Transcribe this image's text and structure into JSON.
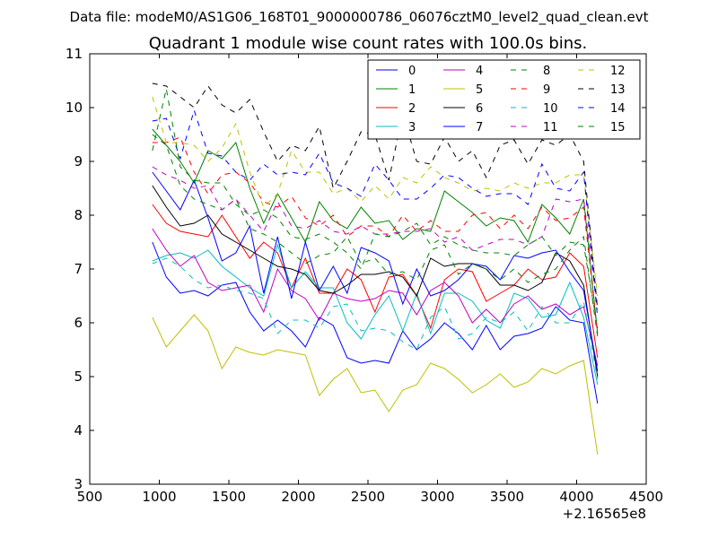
{
  "header": {
    "suptitle": "Data file: modeM0/AS1G06_168T01_9000000786_06076cztM0_level2_quad_clean.evt"
  },
  "chart_data": {
    "type": "line",
    "title": "Quadrant 1 module wise count rates with 100.0s bins.",
    "xlabel": "",
    "ylabel": "",
    "xlim": [
      500,
      4500
    ],
    "ylim": [
      3,
      11
    ],
    "x_offset_label": "+2.16565e8",
    "xticks": [
      "500",
      "1000",
      "1500",
      "2000",
      "2500",
      "3000",
      "3500",
      "4000",
      "4500"
    ],
    "yticks": [
      "3",
      "4",
      "5",
      "6",
      "7",
      "8",
      "9",
      "10",
      "11"
    ],
    "legend_position": "top-right",
    "grid": false,
    "x": [
      950,
      1050,
      1150,
      1250,
      1350,
      1450,
      1550,
      1650,
      1750,
      1850,
      1950,
      2050,
      2150,
      2250,
      2350,
      2450,
      2550,
      2650,
      2750,
      2850,
      2950,
      3050,
      3150,
      3250,
      3350,
      3450,
      3550,
      3650,
      3750,
      3850,
      3950,
      4050,
      4150
    ],
    "series": [
      {
        "name": "0",
        "color": "#0000ff",
        "dash": "solid",
        "values": [
          7.5,
          6.85,
          6.55,
          6.6,
          6.5,
          6.7,
          6.75,
          6.2,
          5.85,
          6.05,
          5.85,
          5.55,
          6.1,
          5.95,
          5.35,
          5.25,
          5.3,
          5.25,
          5.85,
          5.5,
          5.7,
          6.0,
          5.8,
          5.5,
          5.95,
          5.5,
          5.75,
          5.8,
          5.9,
          6.3,
          6.05,
          6.0,
          4.5
        ]
      },
      {
        "name": "1",
        "color": "#008000",
        "dash": "solid",
        "values": [
          9.6,
          9.3,
          9.0,
          8.6,
          9.2,
          9.05,
          9.35,
          8.5,
          7.85,
          8.4,
          7.95,
          7.5,
          8.25,
          7.9,
          7.75,
          8.15,
          7.85,
          7.9,
          7.55,
          7.75,
          7.7,
          8.45,
          8.25,
          8.05,
          7.8,
          7.95,
          7.9,
          7.5,
          8.2,
          7.95,
          7.65,
          8.3,
          5.8
        ]
      },
      {
        "name": "2",
        "color": "#ff0000",
        "dash": "solid",
        "values": [
          8.2,
          7.85,
          7.7,
          7.65,
          7.6,
          8.0,
          7.6,
          7.2,
          7.5,
          7.3,
          6.65,
          7.2,
          6.55,
          6.55,
          7.0,
          6.8,
          6.2,
          6.85,
          6.9,
          6.5,
          5.9,
          6.8,
          7.0,
          6.95,
          6.4,
          6.55,
          6.7,
          7.0,
          6.8,
          6.85,
          7.3,
          7.05,
          5.35
        ]
      },
      {
        "name": "3",
        "color": "#00bfbf",
        "dash": "solid",
        "values": [
          7.15,
          7.25,
          7.3,
          7.2,
          7.35,
          7.05,
          6.85,
          6.65,
          6.5,
          7.45,
          6.65,
          6.95,
          6.65,
          6.65,
          6.0,
          5.7,
          6.15,
          6.5,
          5.85,
          6.55,
          5.8,
          6.55,
          6.55,
          6.4,
          6.05,
          5.9,
          6.55,
          6.45,
          6.1,
          6.15,
          6.75,
          6.1,
          4.85
        ]
      },
      {
        "name": "4",
        "color": "#bf00bf",
        "dash": "solid",
        "values": [
          7.75,
          7.35,
          7.05,
          7.25,
          6.75,
          6.6,
          6.65,
          6.7,
          6.2,
          7.0,
          6.6,
          6.45,
          6.05,
          6.55,
          6.45,
          6.4,
          6.45,
          6.6,
          6.55,
          6.15,
          6.6,
          6.75,
          6.5,
          6.0,
          6.25,
          6.0,
          6.35,
          6.5,
          6.25,
          6.35,
          6.15,
          6.3,
          5.2
        ]
      },
      {
        "name": "5",
        "color": "#bfbf00",
        "dash": "solid",
        "values": [
          6.1,
          5.55,
          5.85,
          6.15,
          5.85,
          5.15,
          5.55,
          5.45,
          5.4,
          5.5,
          5.45,
          5.4,
          4.65,
          4.95,
          5.15,
          4.7,
          4.75,
          4.35,
          4.75,
          4.85,
          5.25,
          5.15,
          4.95,
          4.7,
          4.85,
          5.05,
          4.8,
          4.9,
          5.15,
          5.05,
          5.2,
          5.3,
          3.55
        ]
      },
      {
        "name": "6",
        "color": "#000000",
        "dash": "solid",
        "values": [
          8.55,
          8.15,
          7.8,
          7.85,
          8.0,
          7.65,
          7.5,
          7.35,
          7.2,
          7.05,
          7.0,
          6.9,
          6.6,
          6.55,
          6.7,
          6.9,
          6.9,
          6.95,
          6.85,
          6.5,
          7.2,
          7.05,
          7.1,
          7.1,
          7.0,
          6.7,
          6.7,
          6.6,
          6.75,
          7.3,
          7.15,
          6.7,
          5.0
        ]
      },
      {
        "name": "7",
        "color": "#0000ff",
        "dash": "solid",
        "values": [
          8.8,
          8.45,
          8.1,
          8.65,
          7.95,
          7.15,
          7.3,
          7.8,
          6.55,
          7.6,
          6.45,
          7.5,
          6.6,
          7.05,
          6.55,
          7.4,
          7.3,
          7.15,
          6.35,
          7.0,
          6.5,
          6.6,
          6.8,
          7.1,
          7.05,
          6.8,
          7.25,
          7.2,
          7.3,
          7.35,
          6.95,
          6.6,
          5.1
        ]
      },
      {
        "name": "8",
        "color": "#008000",
        "dash": "dashed",
        "values": [
          9.5,
          9.3,
          8.55,
          8.3,
          8.2,
          8.1,
          8.3,
          7.75,
          7.65,
          7.5,
          7.3,
          7.1,
          7.25,
          7.3,
          7.6,
          7.1,
          7.2,
          6.9,
          6.95,
          6.8,
          7.35,
          7.45,
          6.9,
          7.1,
          7.0,
          6.8,
          7.0,
          6.75,
          6.9,
          7.0,
          7.35,
          7.6,
          5.75
        ]
      },
      {
        "name": "9",
        "color": "#ff0000",
        "dash": "dashed",
        "values": [
          9.35,
          9.35,
          9.45,
          8.8,
          8.4,
          8.75,
          8.8,
          8.6,
          8.25,
          8.15,
          8.35,
          7.95,
          7.8,
          8.0,
          7.6,
          7.8,
          7.8,
          7.6,
          8.0,
          7.7,
          7.9,
          7.7,
          7.7,
          8.0,
          8.05,
          7.75,
          8.0,
          7.75,
          8.15,
          7.9,
          7.95,
          8.15,
          5.8
        ]
      },
      {
        "name": "10",
        "color": "#00bfbf",
        "dash": "dashed",
        "values": [
          7.1,
          7.2,
          7.05,
          6.8,
          6.65,
          6.7,
          6.6,
          6.55,
          6.45,
          5.8,
          6.05,
          6.05,
          5.9,
          6.3,
          6.35,
          5.85,
          5.9,
          5.85,
          5.65,
          5.5,
          6.1,
          6.3,
          5.7,
          5.8,
          6.1,
          6.0,
          6.2,
          5.85,
          6.3,
          6.0,
          6.0,
          6.4,
          4.95
        ]
      },
      {
        "name": "11",
        "color": "#bf00bf",
        "dash": "dashed",
        "values": [
          8.9,
          8.75,
          8.65,
          8.5,
          8.55,
          8.1,
          8.3,
          8.0,
          7.7,
          8.25,
          7.8,
          7.75,
          7.9,
          7.7,
          7.65,
          7.8,
          7.65,
          7.65,
          7.7,
          7.7,
          7.75,
          7.5,
          7.6,
          7.35,
          7.45,
          7.55,
          7.55,
          7.45,
          7.6,
          8.3,
          8.25,
          8.3,
          6.25
        ]
      },
      {
        "name": "12",
        "color": "#bfbf00",
        "dash": "dashed",
        "values": [
          10.2,
          9.35,
          9.35,
          9.3,
          9.0,
          9.25,
          9.7,
          8.8,
          8.15,
          8.4,
          9.2,
          8.8,
          8.8,
          8.4,
          8.5,
          8.25,
          8.55,
          8.3,
          8.7,
          8.6,
          8.9,
          8.7,
          8.6,
          8.45,
          8.5,
          8.45,
          8.6,
          8.5,
          8.6,
          8.6,
          8.75,
          8.75,
          6.5
        ]
      },
      {
        "name": "13",
        "color": "#000000",
        "dash": "dashed",
        "values": [
          10.45,
          10.4,
          10.2,
          10.0,
          10.4,
          10.05,
          9.9,
          10.15,
          9.55,
          9.0,
          9.3,
          9.2,
          9.65,
          8.5,
          9.0,
          9.55,
          9.5,
          8.65,
          9.9,
          9.0,
          8.95,
          9.45,
          9.0,
          9.2,
          8.7,
          9.3,
          9.4,
          8.95,
          9.4,
          9.3,
          9.5,
          9.0,
          6.25
        ]
      },
      {
        "name": "14",
        "color": "#0000ff",
        "dash": "dashed",
        "values": [
          9.75,
          9.8,
          9.05,
          9.95,
          9.15,
          9.1,
          8.8,
          8.65,
          8.95,
          8.75,
          8.8,
          8.75,
          9.15,
          8.6,
          8.5,
          8.35,
          8.95,
          8.65,
          8.3,
          8.3,
          8.5,
          8.75,
          8.7,
          8.5,
          8.35,
          8.4,
          8.4,
          8.2,
          8.95,
          8.5,
          8.45,
          8.8,
          6.1
        ]
      },
      {
        "name": "15",
        "color": "#008000",
        "dash": "dashed",
        "values": [
          9.2,
          10.35,
          8.9,
          8.65,
          8.6,
          8.6,
          8.2,
          8.0,
          8.1,
          7.95,
          7.6,
          7.55,
          7.65,
          7.5,
          7.3,
          7.0,
          7.65,
          7.6,
          7.7,
          7.85,
          7.45,
          7.6,
          7.45,
          7.35,
          7.3,
          7.3,
          7.25,
          7.45,
          7.6,
          7.25,
          7.5,
          7.45,
          5.9
        ]
      }
    ]
  }
}
